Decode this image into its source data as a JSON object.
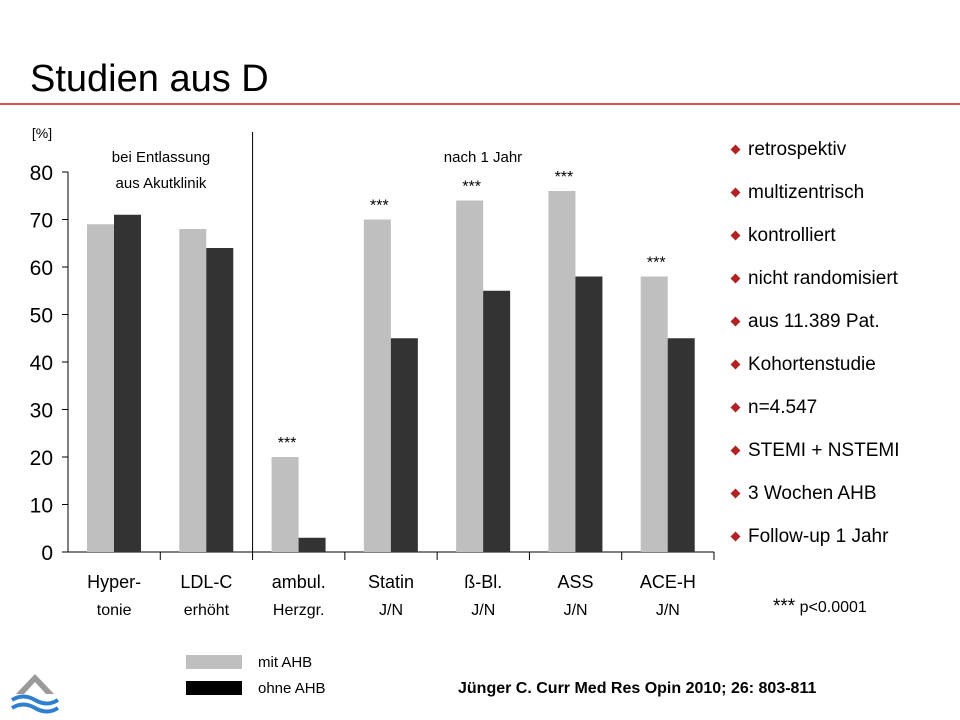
{
  "slide": {
    "title": "Studien aus D",
    "citation": "Jünger C. Curr Med Res Opin 2010; 26: 803-811",
    "significance": {
      "stars": "***",
      "text": "p<0.0001"
    },
    "bullets": [
      "retrospektiv",
      "multizentrisch",
      "kontrolliert",
      "nicht randomisiert",
      "aus 11.389 Pat.",
      "Kohortenstudie",
      "n=4.547",
      "STEMI + NSTEMI",
      "3 Wochen AHB",
      "Follow-up 1 Jahr"
    ],
    "colors": {
      "accent": "#d9534f",
      "bullet": "#b22222",
      "mit": "#bfbfbf",
      "ohne": "#333333",
      "ohne_legend": "#000000"
    },
    "logo_icon": "wave-logo-icon"
  },
  "chart_data": {
    "type": "bar",
    "ylabel": "[%]",
    "ylim": [
      0,
      80
    ],
    "yticks": [
      0,
      10,
      20,
      30,
      40,
      50,
      60,
      70,
      80
    ],
    "grid": false,
    "legend_position": "bottom-left",
    "section_labels": {
      "left": [
        "bei Entlassung",
        "aus Akutklinik"
      ],
      "right": "nach  1  Jahr"
    },
    "categories": [
      {
        "line1": "Hyper-",
        "line2": "tonie"
      },
      {
        "line1": "LDL-C",
        "line2": "erhöht"
      },
      {
        "line1": "ambul.",
        "line2": "Herzgr."
      },
      {
        "line1": "Statin",
        "line2": "J/N"
      },
      {
        "line1": "ß-Bl.",
        "line2": "J/N"
      },
      {
        "line1": "ASS",
        "line2": "J/N"
      },
      {
        "line1": "ACE-H",
        "line2": "J/N"
      }
    ],
    "series": [
      {
        "name": "mit AHB",
        "values": [
          69,
          68,
          20,
          70,
          74,
          76,
          58
        ]
      },
      {
        "name": "ohne AHB",
        "values": [
          71,
          64,
          3,
          45,
          55,
          58,
          45
        ]
      }
    ],
    "annotations": [
      "",
      "",
      "***",
      "***",
      "***",
      "***",
      "***"
    ]
  }
}
